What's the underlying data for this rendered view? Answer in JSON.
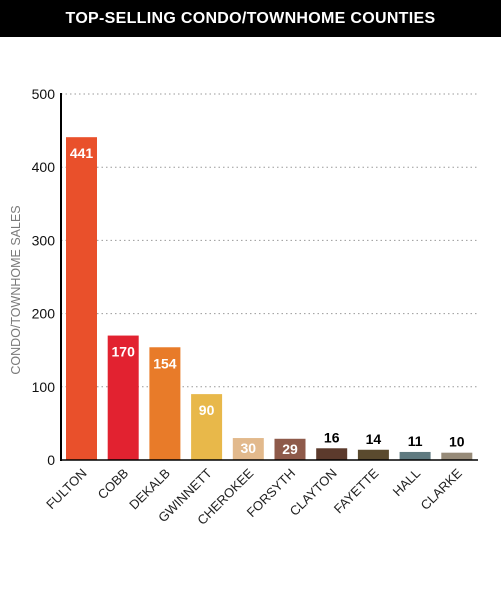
{
  "title": "TOP-SELLING CONDO/TOWNHOME COUNTIES",
  "chart_data": {
    "type": "bar",
    "title": "TOP-SELLING CONDO/TOWNHOME COUNTIES",
    "xlabel": "",
    "ylabel": "CONDO/TOWNHOME SALES",
    "ylim": [
      0,
      500
    ],
    "yticks": [
      0,
      100,
      200,
      300,
      400,
      500
    ],
    "grid": true,
    "categories": [
      "FULTON",
      "COBB",
      "DEKALB",
      "GWINNETT",
      "CHEROKEE",
      "FORSYTH",
      "CLAYTON",
      "FAYETTE",
      "HALL",
      "CLARKE"
    ],
    "values": [
      441,
      170,
      154,
      90,
      30,
      29,
      16,
      14,
      11,
      10
    ],
    "colors": [
      "#E9502B",
      "#E22230",
      "#E87B29",
      "#E8B84A",
      "#E2B98C",
      "#8E5A4A",
      "#5C3A2C",
      "#5A4A2E",
      "#5F7A80",
      "#968A78"
    ],
    "label_colors": [
      "#ffffff",
      "#ffffff",
      "#ffffff",
      "#ffffff",
      "#ffffff",
      "#ffffff",
      "#000000",
      "#000000",
      "#000000",
      "#000000"
    ],
    "label_inside": [
      true,
      true,
      true,
      true,
      true,
      true,
      false,
      false,
      false,
      false
    ]
  }
}
